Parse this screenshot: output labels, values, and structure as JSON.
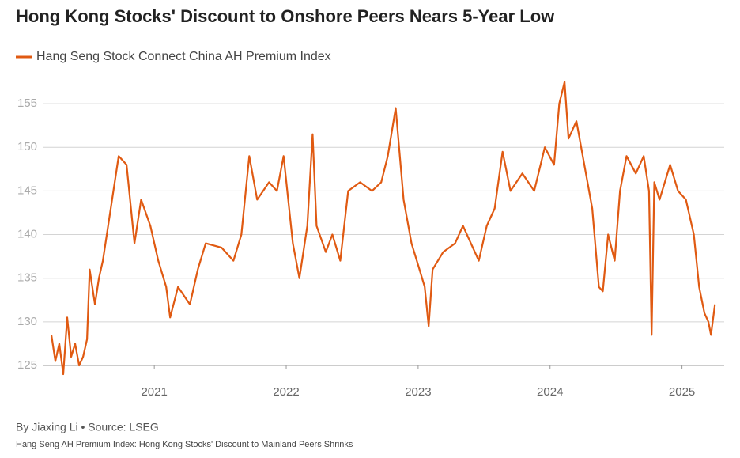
{
  "chart_data": {
    "type": "line",
    "title": "Hong Kong Stocks' Discount to Onshore Peers Nears 5-Year Low",
    "byline": "By Jiaxing Li • Source: LSEG",
    "footnote": "Hang Seng AH Premium Index: Hong Kong Stocks' Discount to Mainland Peers Shrinks",
    "x": [
      2020.22,
      2020.25,
      2020.28,
      2020.31,
      2020.34,
      2020.37,
      2020.4,
      2020.43,
      2020.46,
      2020.49,
      2020.51,
      2020.55,
      2020.58,
      2020.61,
      2020.67,
      2020.73,
      2020.79,
      2020.85,
      2020.9,
      2020.97,
      2021.03,
      2021.09,
      2021.12,
      2021.18,
      2021.27,
      2021.33,
      2021.39,
      2021.51,
      2021.6,
      2021.66,
      2021.72,
      2021.78,
      2021.87,
      2021.93,
      2021.98,
      2022.05,
      2022.1,
      2022.16,
      2022.2,
      2022.23,
      2022.3,
      2022.35,
      2022.41,
      2022.47,
      2022.56,
      2022.65,
      2022.72,
      2022.77,
      2022.83,
      2022.89,
      2022.95,
      2023.01,
      2023.05,
      2023.08,
      2023.11,
      2023.19,
      2023.28,
      2023.34,
      2023.4,
      2023.46,
      2023.52,
      2023.58,
      2023.64,
      2023.7,
      2023.79,
      2023.88,
      2023.96,
      2024.03,
      2024.07,
      2024.11,
      2024.14,
      2024.2,
      2024.26,
      2024.32,
      2024.37,
      2024.4,
      2024.44,
      2024.49,
      2024.53,
      2024.58,
      2024.65,
      2024.71,
      2024.75,
      2024.77,
      2024.79,
      2024.83,
      2024.91,
      2024.97,
      2025.03,
      2025.09,
      2025.13,
      2025.17,
      2025.2,
      2025.22,
      2025.25
    ],
    "series": [
      {
        "name": "Hang Seng Stock Connect China AH Premium Index",
        "color": "#e05a12",
        "values": [
          128.5,
          125.5,
          127.5,
          124,
          130.5,
          126,
          127.5,
          125,
          126,
          128,
          136,
          132,
          135,
          137,
          143,
          149,
          148,
          139,
          144,
          141,
          137,
          134,
          130.5,
          134,
          132,
          136,
          139,
          138.5,
          137,
          140,
          149,
          144,
          146,
          145,
          149,
          139,
          135,
          141,
          151.5,
          141,
          138,
          140,
          137,
          145,
          146,
          145,
          146,
          149,
          154.5,
          144,
          139,
          136,
          134,
          129.5,
          136,
          138,
          139,
          141,
          139,
          137,
          141,
          143,
          149.5,
          145,
          147,
          145,
          150,
          148,
          155,
          157.5,
          151,
          153,
          148,
          143,
          134,
          133.5,
          140,
          137,
          145,
          149,
          147,
          149,
          145,
          128.5,
          146,
          144,
          148,
          145,
          144,
          140,
          134,
          131,
          130,
          128.5,
          132
        ]
      }
    ],
    "xlim": [
      2020.16,
      2025.32
    ],
    "xticks": [
      2021,
      2022,
      2023,
      2024,
      2025
    ],
    "ylim": [
      125,
      158
    ],
    "yticks": [
      125,
      130,
      135,
      140,
      145,
      150,
      155
    ],
    "grid": true
  }
}
